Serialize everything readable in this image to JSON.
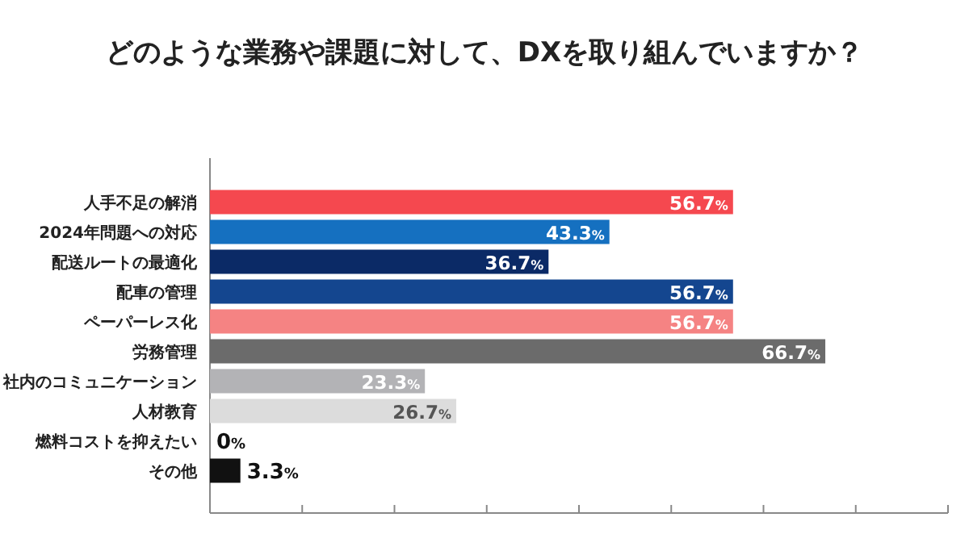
{
  "chart_data": {
    "type": "bar",
    "orientation": "horizontal",
    "title": "どのような業務や課題に対して、DXを取り組んでいますか？",
    "categories": [
      "人手不足の解消",
      "2024年問題への対応",
      "配送ルートの最適化",
      "配車の管理",
      "ペーパーレス化",
      "労務管理",
      "社内のコミュニケーション",
      "人材教育",
      "燃料コストを抑えたい",
      "その他"
    ],
    "values": [
      56.7,
      43.3,
      36.7,
      56.7,
      56.7,
      66.7,
      23.3,
      26.7,
      0,
      3.3
    ],
    "colors": [
      "#f5484f",
      "#1570c0",
      "#0b2a66",
      "#14468f",
      "#f58383",
      "#6b6b6b",
      "#b3b3b6",
      "#dcdcdc",
      "#111111",
      "#111111"
    ],
    "value_labels": [
      "56.7%",
      "43.3%",
      "36.7%",
      "56.7%",
      "56.7%",
      "66.7%",
      "23.3%",
      "26.7%",
      "0%",
      "3.3%"
    ],
    "xlim": [
      0,
      80
    ],
    "xticks": [
      {
        "value": 0,
        "label": null
      },
      {
        "value": 10,
        "label": null
      },
      {
        "value": 20,
        "label": null
      },
      {
        "value": 30,
        "label": null
      },
      {
        "value": 40,
        "label": null
      },
      {
        "value": 50,
        "label": null
      },
      {
        "value": 60,
        "label": null
      },
      {
        "value": 70,
        "label": null
      },
      {
        "value": 80,
        "label": null
      }
    ],
    "tick_labels": "y"
  }
}
